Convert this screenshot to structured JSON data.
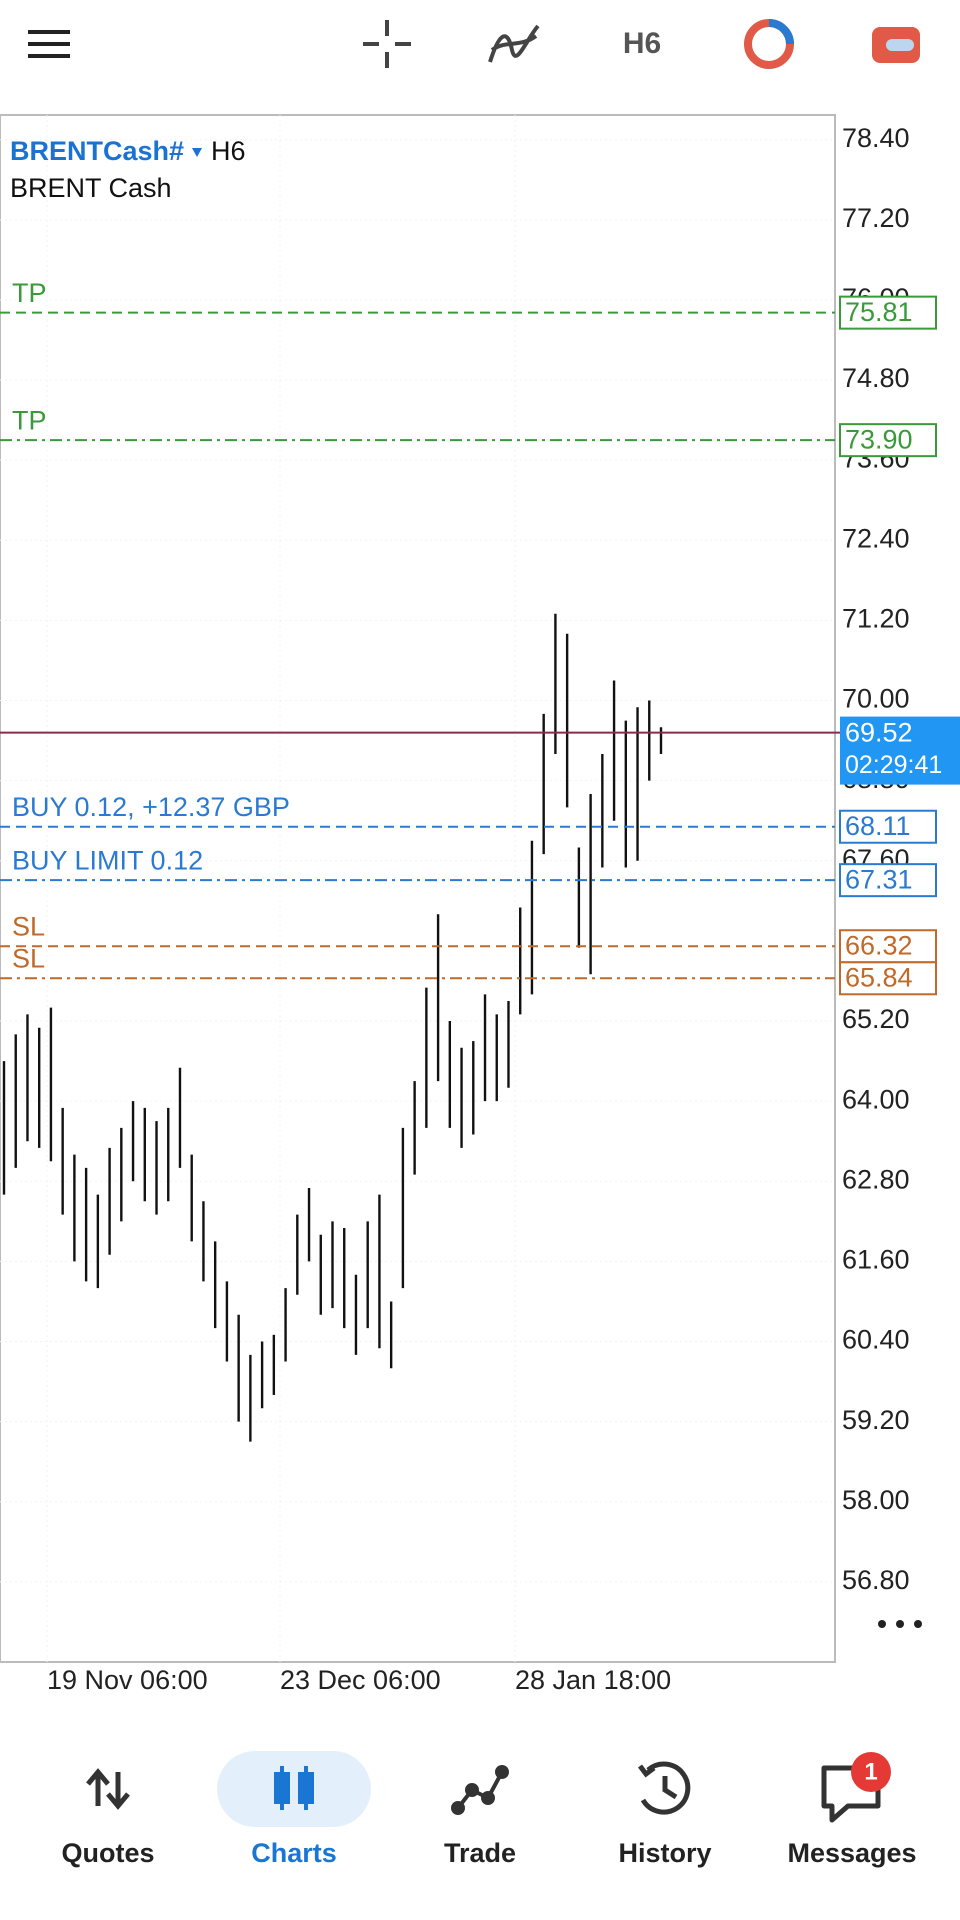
{
  "toolbar": {
    "timeframe": "H6"
  },
  "chart_data": {
    "type": "ohlc",
    "symbol": "BRENTCash#",
    "timeframe": "H6",
    "description": "BRENT Cash",
    "ylim": [
      55.6,
      78.77
    ],
    "yticks": [
      {
        "value": 78.4,
        "label": "78.40"
      },
      {
        "value": 77.2,
        "label": "77.20"
      },
      {
        "value": 76.0,
        "label": "76.00"
      },
      {
        "value": 74.8,
        "label": "74.80"
      },
      {
        "value": 73.6,
        "label": "73.60"
      },
      {
        "value": 72.4,
        "label": "72.40"
      },
      {
        "value": 71.2,
        "label": "71.20"
      },
      {
        "value": 70.0,
        "label": "70.00"
      },
      {
        "value": 68.8,
        "label": "68.80"
      },
      {
        "value": 67.6,
        "label": "67.60"
      },
      {
        "value": 65.2,
        "label": "65.20"
      },
      {
        "value": 64.0,
        "label": "64.00"
      },
      {
        "value": 62.8,
        "label": "62.80"
      },
      {
        "value": 61.6,
        "label": "61.60"
      },
      {
        "value": 60.4,
        "label": "60.40"
      },
      {
        "value": 59.2,
        "label": "59.20"
      },
      {
        "value": 58.0,
        "label": "58.00"
      },
      {
        "value": 56.8,
        "label": "56.80"
      }
    ],
    "grid": true,
    "x_labels": [
      "19 Nov 06:00",
      "23 Dec 06:00",
      "28 Jan 18:00"
    ],
    "bars": {
      "high": [
        64.6,
        65.0,
        65.3,
        65.1,
        65.4,
        63.9,
        63.2,
        63.0,
        62.6,
        63.3,
        63.6,
        64.0,
        63.9,
        63.7,
        63.9,
        64.5,
        63.2,
        62.5,
        61.9,
        61.3,
        60.8,
        60.2,
        60.4,
        60.5,
        61.2,
        62.3,
        62.7,
        62.0,
        62.2,
        62.1,
        61.4,
        62.2,
        62.6,
        61.0,
        63.6,
        64.3,
        65.7,
        66.8,
        65.2,
        64.8,
        64.9,
        65.6,
        65.3,
        65.5,
        66.9,
        67.9,
        69.8,
        71.3,
        71.0,
        67.8,
        68.6,
        69.2,
        70.3,
        69.7,
        69.9,
        70.0,
        69.6
      ],
      "low": [
        62.6,
        63.0,
        63.4,
        63.3,
        63.1,
        62.3,
        61.6,
        61.3,
        61.2,
        61.7,
        62.2,
        62.8,
        62.5,
        62.3,
        62.5,
        63.0,
        61.9,
        61.3,
        60.6,
        60.1,
        59.2,
        58.9,
        59.4,
        59.6,
        60.1,
        61.1,
        61.6,
        60.8,
        60.9,
        60.6,
        60.2,
        60.6,
        60.3,
        60.0,
        61.2,
        62.9,
        63.6,
        64.3,
        63.6,
        63.3,
        63.5,
        64.0,
        64.0,
        64.2,
        65.3,
        65.6,
        67.7,
        69.2,
        68.4,
        66.3,
        65.9,
        67.5,
        68.2,
        67.5,
        67.6,
        68.8,
        69.2
      ]
    },
    "levels": [
      {
        "label": "TP",
        "value": 75.81,
        "value_label": "75.81",
        "color": "#3a9a3a",
        "style": "dashed"
      },
      {
        "label": "TP",
        "value": 73.9,
        "value_label": "73.90",
        "color": "#3a9a3a",
        "style": "dashdot"
      },
      {
        "label": "BUY 0.12,  +12.37 GBP",
        "value": 68.11,
        "value_label": "68.11",
        "color": "#2a7ad2",
        "style": "dashed"
      },
      {
        "label": "BUY LIMIT 0.12",
        "value": 67.31,
        "value_label": "67.31",
        "color": "#2a7ad2",
        "style": "dashdot"
      },
      {
        "label": "SL",
        "value": 66.32,
        "value_label": "66.32",
        "color": "#c0692a",
        "style": "dashed"
      },
      {
        "label": "SL",
        "value": 65.84,
        "value_label": "65.84",
        "color": "#c0692a",
        "style": "dashdot"
      }
    ],
    "price": {
      "value": 69.52,
      "value_label": "69.52",
      "countdown": "02:29:41",
      "color": "#8a2b4a"
    }
  },
  "nav": {
    "items": [
      {
        "label": "Quotes"
      },
      {
        "label": "Charts"
      },
      {
        "label": "Trade"
      },
      {
        "label": "History"
      },
      {
        "label": "Messages"
      }
    ],
    "active": 1,
    "badge": "1"
  }
}
